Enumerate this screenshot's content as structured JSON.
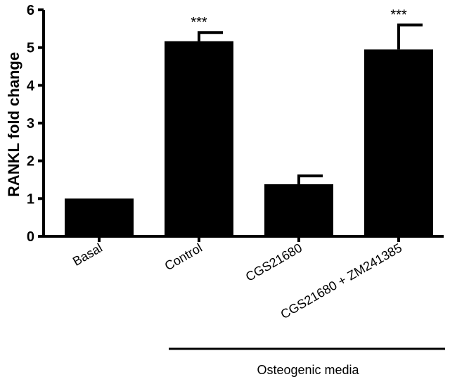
{
  "chart_data": {
    "type": "bar",
    "ylabel": "RANKL fold change",
    "ylim": [
      0,
      6
    ],
    "yticks": [
      0,
      1,
      2,
      3,
      4,
      5,
      6
    ],
    "grid": false,
    "categories": [
      "Basal",
      "Control",
      "CGS21680",
      "CGS21680 + ZM241385"
    ],
    "values": [
      1.0,
      5.17,
      1.38,
      4.95
    ],
    "error": [
      0,
      0.23,
      0.22,
      0.65
    ],
    "annotations": [
      "",
      "***",
      "",
      "***"
    ],
    "bar_color": "#000000",
    "group_label": {
      "text": "Osteogenic media",
      "categories": [
        "Control",
        "CGS21680",
        "CGS21680 + ZM241385"
      ]
    }
  }
}
